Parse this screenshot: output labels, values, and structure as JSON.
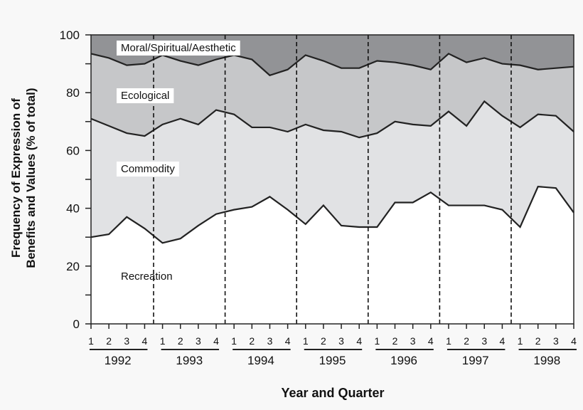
{
  "chart_data": {
    "type": "area",
    "stacked": true,
    "title": "",
    "xlabel": "Year and Quarter",
    "ylabel": [
      "Frequency of Expression of",
      "Benefits and Values (% of total)"
    ],
    "ylim": [
      0,
      100
    ],
    "yticks": [
      0,
      20,
      40,
      60,
      80,
      100
    ],
    "grid": false,
    "years": [
      "1992",
      "1993",
      "1994",
      "1995",
      "1996",
      "1997",
      "1998"
    ],
    "quarters": [
      "1",
      "2",
      "3",
      "4"
    ],
    "series": [
      {
        "name": "Recreation",
        "color": "#ffffff",
        "values": [
          30,
          31,
          37,
          33,
          28,
          29.5,
          34,
          38,
          39.5,
          40.5,
          44,
          39.5,
          34.5,
          41,
          34,
          33.5,
          33.5,
          42,
          42,
          45.5,
          41,
          41,
          41,
          39.5,
          33.5,
          47.5,
          47,
          38.5
        ]
      },
      {
        "name": "Commodity",
        "color": "#e1e2e4",
        "values": [
          41,
          37.5,
          29,
          32,
          41,
          41.5,
          35,
          36,
          33,
          27.5,
          24,
          27,
          34.5,
          26,
          32.5,
          31,
          32.5,
          28,
          27,
          23,
          32.5,
          27.5,
          36,
          32.5,
          34.5,
          25,
          25,
          28
        ]
      },
      {
        "name": "Ecological",
        "color": "#c6c7c9",
        "values": [
          22.5,
          23.5,
          23.5,
          25,
          24,
          20,
          20.5,
          17.5,
          20.5,
          23.5,
          18,
          21.5,
          24,
          24,
          22,
          24,
          25,
          20.5,
          20.5,
          19.5,
          20,
          22,
          15,
          18,
          21.5,
          15.5,
          16.5,
          22.5
        ]
      },
      {
        "name": "Moral/Spiritual/Aesthetic",
        "color": "#929396",
        "values": [
          6.5,
          8,
          10.5,
          10,
          7,
          9,
          10.5,
          8.5,
          7,
          8.5,
          14,
          12,
          7,
          9,
          11.5,
          11.5,
          9,
          9.5,
          10.5,
          12,
          6.5,
          9.5,
          8,
          10,
          10.5,
          12,
          11.5,
          11
        ]
      }
    ]
  }
}
